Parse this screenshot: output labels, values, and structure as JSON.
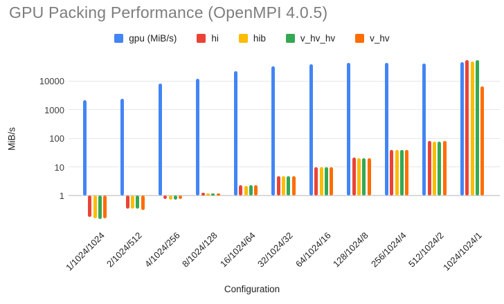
{
  "title": "GPU Packing Performance (OpenMPI 4.0.5)",
  "chart_data": {
    "type": "bar",
    "title": "GPU Packing Performance (OpenMPI 4.0.5)",
    "xlabel": "Configuration",
    "ylabel": "MiB/s",
    "y_scale": "log",
    "y_ticks": [
      1,
      10,
      100,
      1000,
      10000
    ],
    "ylim": [
      0.13,
      60000
    ],
    "grid": true,
    "legend_position": "top",
    "categories": [
      "1/1024/1024",
      "2/1024/512",
      "4/1024/256",
      "8/1024/128",
      "16/1024/64",
      "32/1024/32",
      "64/1024/16",
      "128/1024/8",
      "256/1024/4",
      "512/1024/2",
      "1024/1024/1"
    ],
    "series": [
      {
        "name": "gpu (MiB/s)",
        "color": "#4285F4",
        "values": [
          2100,
          2400,
          8000,
          12000,
          22000,
          32000,
          38500,
          42000,
          42000,
          40000,
          45000
        ]
      },
      {
        "name": "hi",
        "color": "#EA4335",
        "values": [
          0.18,
          0.35,
          0.75,
          1.25,
          2.3,
          4.8,
          10,
          21,
          38,
          78,
          52000
        ]
      },
      {
        "name": "hib",
        "color": "#FBBC04",
        "values": [
          0.16,
          0.35,
          0.72,
          1.2,
          2.2,
          4.6,
          10,
          20,
          39,
          77,
          48000
        ]
      },
      {
        "name": "v_hv_hv",
        "color": "#34A853",
        "values": [
          0.15,
          0.34,
          0.73,
          1.2,
          2.3,
          4.6,
          10,
          20,
          39,
          75,
          52000
        ]
      },
      {
        "name": "v_hv",
        "color": "#FF6D01",
        "values": [
          0.16,
          0.32,
          0.74,
          1.2,
          2.3,
          4.7,
          10,
          19.5,
          40,
          80,
          6400
        ]
      }
    ]
  },
  "colors": {
    "title_text": "#7d7d7d",
    "axis_text": "#1f1f1f",
    "tick_text": "#3c3c3c",
    "gridline": "#e6e6e6",
    "baseline": "#d9d9d9",
    "background": "#ffffff"
  }
}
